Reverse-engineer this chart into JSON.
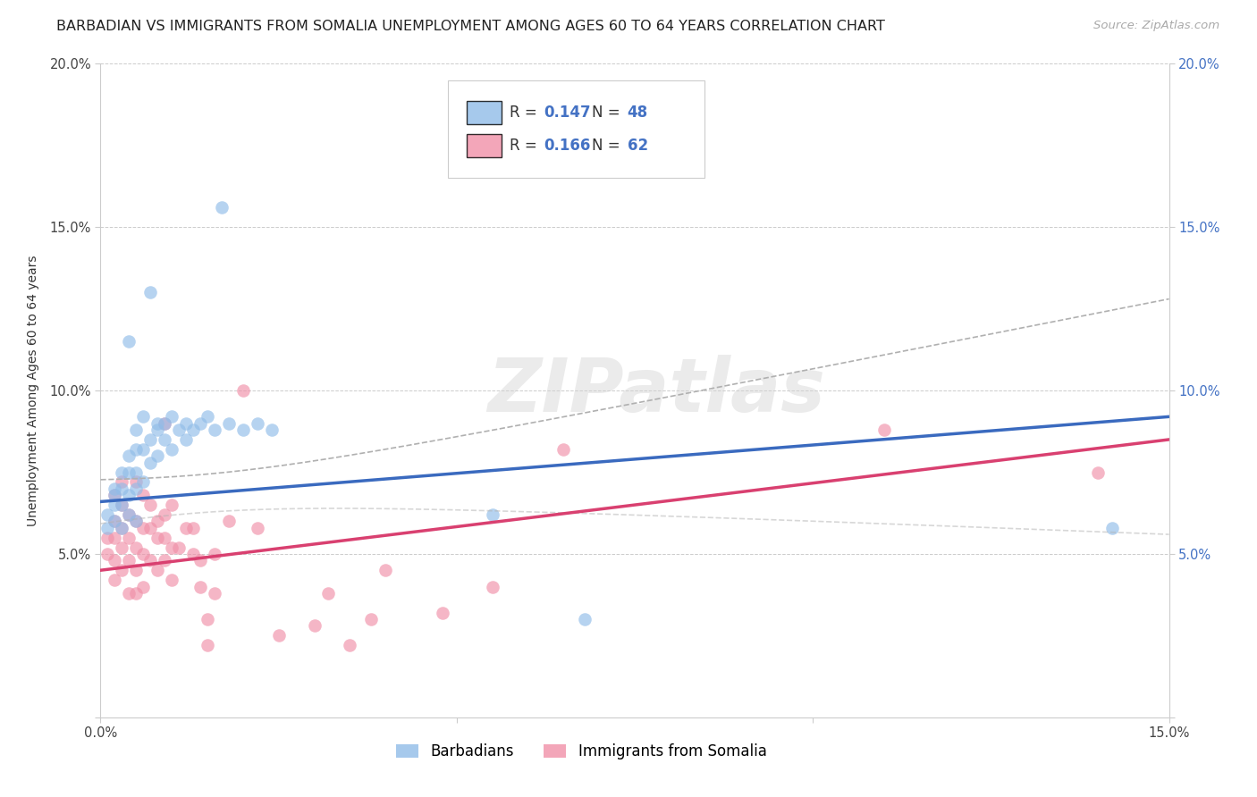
{
  "title": "BARBADIAN VS IMMIGRANTS FROM SOMALIA UNEMPLOYMENT AMONG AGES 60 TO 64 YEARS CORRELATION CHART",
  "source": "Source: ZipAtlas.com",
  "ylabel": "Unemployment Among Ages 60 to 64 years",
  "xlim": [
    0.0,
    0.15
  ],
  "ylim": [
    0.0,
    0.2
  ],
  "background_color": "#ffffff",
  "grid_color": "#cccccc",
  "watermark_text": "ZIPatlas",
  "barbadian_color": "#90bce8",
  "somalia_color": "#f090a8",
  "barbadian_line_color": "#3a6abf",
  "somalia_line_color": "#d94070",
  "conf_band_color": "#b0b0b0",
  "tick_color_blue": "#4472c4",
  "tick_color_dark": "#444444",
  "title_fontsize": 11.5,
  "axis_label_fontsize": 10,
  "tick_fontsize": 10.5,
  "legend_fontsize": 12,
  "R_barbadian": "0.147",
  "N_barbadian": "48",
  "R_somalia": "0.166",
  "N_somalia": "62",
  "barbadian_x": [
    0.001,
    0.001,
    0.002,
    0.002,
    0.002,
    0.002,
    0.003,
    0.003,
    0.003,
    0.003,
    0.004,
    0.004,
    0.004,
    0.004,
    0.004,
    0.005,
    0.005,
    0.005,
    0.005,
    0.005,
    0.006,
    0.006,
    0.006,
    0.007,
    0.007,
    0.007,
    0.008,
    0.008,
    0.008,
    0.009,
    0.009,
    0.01,
    0.01,
    0.011,
    0.012,
    0.012,
    0.013,
    0.014,
    0.015,
    0.016,
    0.017,
    0.018,
    0.02,
    0.022,
    0.024,
    0.055,
    0.068,
    0.142
  ],
  "barbadian_y": [
    0.058,
    0.062,
    0.06,
    0.065,
    0.068,
    0.07,
    0.058,
    0.065,
    0.07,
    0.075,
    0.062,
    0.068,
    0.075,
    0.08,
    0.115,
    0.06,
    0.07,
    0.075,
    0.082,
    0.088,
    0.072,
    0.082,
    0.092,
    0.078,
    0.085,
    0.13,
    0.08,
    0.088,
    0.09,
    0.085,
    0.09,
    0.082,
    0.092,
    0.088,
    0.085,
    0.09,
    0.088,
    0.09,
    0.092,
    0.088,
    0.156,
    0.09,
    0.088,
    0.09,
    0.088,
    0.062,
    0.03,
    0.058
  ],
  "somalia_x": [
    0.001,
    0.001,
    0.002,
    0.002,
    0.002,
    0.002,
    0.002,
    0.003,
    0.003,
    0.003,
    0.003,
    0.003,
    0.004,
    0.004,
    0.004,
    0.004,
    0.005,
    0.005,
    0.005,
    0.005,
    0.005,
    0.006,
    0.006,
    0.006,
    0.006,
    0.007,
    0.007,
    0.007,
    0.008,
    0.008,
    0.008,
    0.009,
    0.009,
    0.009,
    0.009,
    0.01,
    0.01,
    0.01,
    0.011,
    0.012,
    0.013,
    0.013,
    0.014,
    0.014,
    0.015,
    0.015,
    0.016,
    0.016,
    0.018,
    0.02,
    0.022,
    0.025,
    0.03,
    0.032,
    0.035,
    0.038,
    0.04,
    0.048,
    0.055,
    0.065,
    0.11,
    0.14
  ],
  "somalia_y": [
    0.05,
    0.055,
    0.042,
    0.048,
    0.055,
    0.06,
    0.068,
    0.045,
    0.052,
    0.058,
    0.065,
    0.072,
    0.038,
    0.048,
    0.055,
    0.062,
    0.038,
    0.045,
    0.052,
    0.06,
    0.072,
    0.04,
    0.05,
    0.058,
    0.068,
    0.048,
    0.058,
    0.065,
    0.045,
    0.055,
    0.06,
    0.048,
    0.055,
    0.062,
    0.09,
    0.042,
    0.052,
    0.065,
    0.052,
    0.058,
    0.05,
    0.058,
    0.04,
    0.048,
    0.022,
    0.03,
    0.038,
    0.05,
    0.06,
    0.1,
    0.058,
    0.025,
    0.028,
    0.038,
    0.022,
    0.03,
    0.045,
    0.032,
    0.04,
    0.082,
    0.088,
    0.075
  ],
  "legend_label_barbadian": "Barbadians",
  "legend_label_somalia": "Immigrants from Somalia"
}
